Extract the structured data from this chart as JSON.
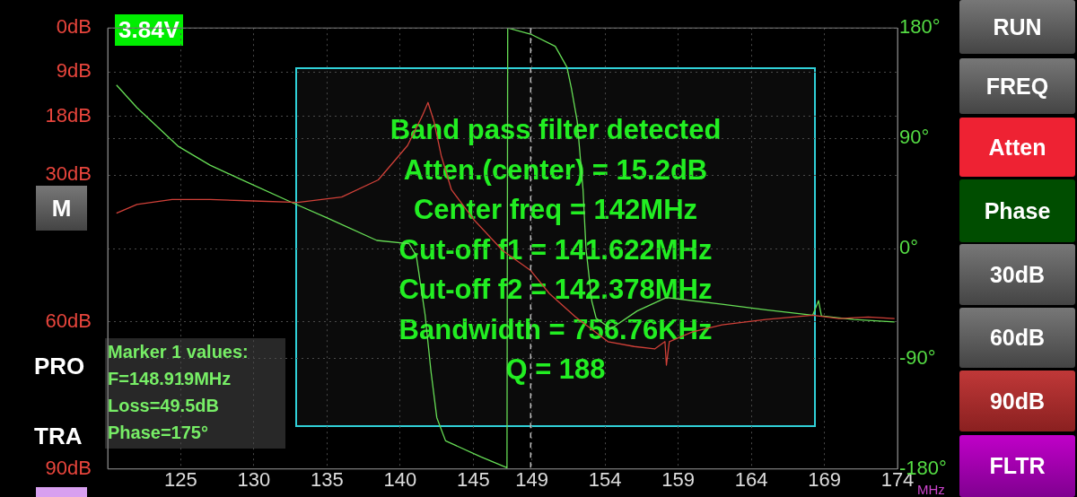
{
  "chart_data": {
    "type": "line",
    "xlabel": "MHz",
    "xlim": [
      120,
      174
    ],
    "xticks": [
      125,
      130,
      135,
      140,
      145,
      149,
      154,
      159,
      164,
      169,
      174
    ],
    "ylim": [
      90,
      0
    ],
    "yticks": [
      {
        "value": 0,
        "label": "0dB"
      },
      {
        "value": 9,
        "label": "9dB"
      },
      {
        "value": 18,
        "label": "18dB"
      },
      {
        "value": 30,
        "label": "30dB"
      },
      {
        "value": 60,
        "label": "60dB"
      },
      {
        "value": 90,
        "label": "90dB"
      }
    ],
    "y2lim": [
      -180,
      180
    ],
    "y2ticks": [
      {
        "value": 180,
        "label": "180°"
      },
      {
        "value": 90,
        "label": "90°"
      },
      {
        "value": 0,
        "label": "0°"
      },
      {
        "value": -90,
        "label": "-90°"
      },
      {
        "value": -180,
        "label": "-180°"
      }
    ],
    "grid": true,
    "marker": "none",
    "line_style": "solid",
    "series": [
      {
        "color": "#d04038",
        "x": [
          120.6,
          122,
          124.4,
          127,
          130,
          133,
          136,
          138.5,
          140.5,
          141.5,
          141.9,
          142.3,
          142.8,
          143.5,
          145,
          147,
          148.919,
          150.2,
          152,
          154.2,
          156,
          157.4,
          158.1,
          158.2,
          158.4,
          160,
          162,
          165,
          168.2,
          170,
          172,
          173.8
        ],
        "values": [
          37.8,
          36,
          35,
          35,
          35.3,
          35.6,
          34.5,
          31,
          24,
          18,
          15.2,
          19,
          26,
          33,
          39,
          45.4,
          49.5,
          54.2,
          59,
          64,
          65,
          65.5,
          64,
          68.8,
          64,
          62,
          60.6,
          59.5,
          58.6,
          59.3,
          59,
          59.3
        ]
      },
      {
        "color": "#66dd55",
        "axis": "y2",
        "x": [
          120.6,
          122,
          124.8,
          127,
          129.1,
          132.7,
          135,
          138.4,
          140.6,
          141.1,
          141.7,
          142.1,
          142.5,
          143.1,
          145.5,
          147.3,
          147.35,
          148.919,
          150.6,
          151.4,
          151.7,
          152.1,
          152.5,
          152.7,
          153.1,
          153.4,
          154.4,
          156.2,
          158.2,
          162,
          165,
          168.2,
          168.6,
          168.8,
          171,
          173.8
        ],
        "values": [
          133.5,
          115,
          83.6,
          68,
          56.5,
          37,
          25,
          6.6,
          4,
          -6,
          -54,
          -100,
          -138,
          -157,
          -170,
          -179,
          180,
          175,
          165,
          148,
          131,
          104,
          48,
          0,
          -43,
          -57,
          -65.6,
          -51,
          -40,
          -45.5,
          -50,
          -54.5,
          -42.6,
          -55,
          -58,
          -60
        ]
      }
    ],
    "ref_lines": [
      {
        "axis": "x",
        "value": 148.919,
        "color": "#bbbbbb",
        "line_style": "dashed"
      }
    ],
    "annotations": [
      "3.84V",
      "Band pass filter detected",
      "Atten.(center) = 15.2dB",
      "Center freq = 142MHz",
      "Cut-off f1 = 141.622MHz",
      "Cut-off f2 = 142.378MHz",
      "Bandwidth = 756.76KHz",
      "Q = 188",
      "Marker 1 values:",
      "F=148.919MHz",
      "Loss=49.5dB",
      "Phase=175°",
      "RUN",
      "FREQ",
      "Atten",
      "Phase",
      "30dB",
      "60dB",
      "90dB",
      "FLTR",
      "M",
      "PRO",
      "TRA"
    ]
  }
}
